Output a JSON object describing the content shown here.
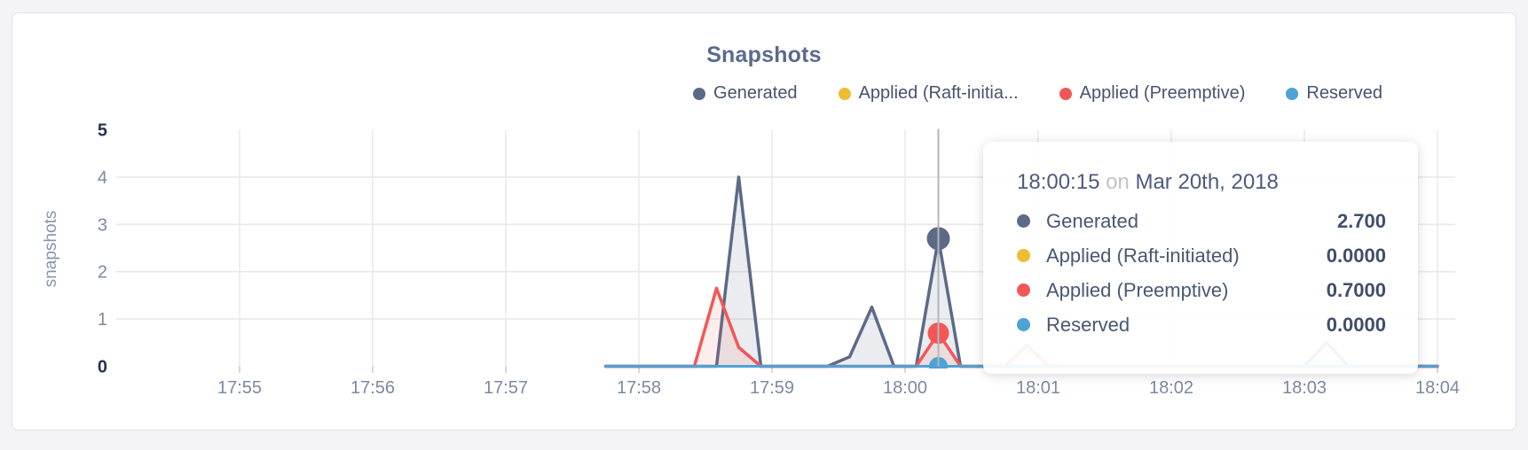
{
  "colors": {
    "page_bg": "#f4f4f6",
    "card_bg": "#ffffff",
    "card_border": "#e3e3e6",
    "title": "#5a6b8e",
    "legend_text": "#47536e",
    "tick_text": "#7d89a1",
    "tick_text_bold": "#253552",
    "axis_label": "#8695ad",
    "grid": "#e9e9ec",
    "tick_mark": "#d5d8dd",
    "crosshair": "#b3b6ba",
    "tooltip_text": "#475872",
    "tooltip_value": "#3f4e6b",
    "tooltip_on": "#c3c3c3"
  },
  "chart_data": {
    "type": "area",
    "title": "Snapshots",
    "ylabel": "snapshots",
    "xlabel": "",
    "ylim": [
      0,
      5
    ],
    "y_ticks": [
      0,
      1,
      2,
      3,
      4,
      5
    ],
    "grid": true,
    "legend_position": "top-right",
    "x_unit": "seconds after 17:54:00 on Mar 20th, 2018",
    "x_ticks": [
      {
        "label": "17:55",
        "t": 60
      },
      {
        "label": "17:56",
        "t": 120
      },
      {
        "label": "17:57",
        "t": 180
      },
      {
        "label": "17:58",
        "t": 240
      },
      {
        "label": "17:59",
        "t": 300
      },
      {
        "label": "18:00",
        "t": 360
      },
      {
        "label": "18:01",
        "t": 420
      },
      {
        "label": "18:02",
        "t": 480
      },
      {
        "label": "18:03",
        "t": 540
      },
      {
        "label": "18:04",
        "t": 600
      }
    ],
    "series": [
      {
        "name": "Generated",
        "legend_label": "Generated",
        "color": "#5c6a87",
        "fill": "rgba(92,106,135,0.13)",
        "line_width": 3.5,
        "marker_radius": 13,
        "points": [
          [
            225,
            0
          ],
          [
            275,
            0
          ],
          [
            285,
            4.0
          ],
          [
            295,
            0
          ],
          [
            325,
            0
          ],
          [
            335,
            0.2
          ],
          [
            345,
            1.25
          ],
          [
            355,
            0
          ],
          [
            365,
            0
          ],
          [
            375,
            2.7
          ],
          [
            385,
            0
          ],
          [
            540,
            0
          ],
          [
            550,
            0.5
          ],
          [
            560,
            0
          ],
          [
            600,
            0
          ]
        ]
      },
      {
        "name": "Applied (Raft-initiated)",
        "legend_label": "Applied (Raft-initia...",
        "color": "#eebd33",
        "fill": "rgba(238,189,51,0.10)",
        "line_width": 3,
        "marker_radius": 10.5,
        "points": [
          [
            225,
            0
          ],
          [
            600,
            0
          ]
        ]
      },
      {
        "name": "Applied (Preemptive)",
        "legend_label": "Applied (Preemptive)",
        "color": "#f25757",
        "fill": "rgba(242,87,87,0.11)",
        "line_width": 3.5,
        "marker_radius": 12,
        "points": [
          [
            225,
            0
          ],
          [
            265,
            0
          ],
          [
            275,
            1.65
          ],
          [
            285,
            0.4
          ],
          [
            295,
            0
          ],
          [
            365,
            0
          ],
          [
            375,
            0.7
          ],
          [
            385,
            0
          ],
          [
            405,
            0
          ],
          [
            415,
            0.45
          ],
          [
            425,
            0
          ],
          [
            600,
            0
          ]
        ]
      },
      {
        "name": "Reserved",
        "legend_label": "Reserved",
        "color": "#4da2d6",
        "fill": "none",
        "line_width": 3,
        "marker_radius": 10.5,
        "points": [
          [
            225,
            0
          ],
          [
            600,
            0
          ]
        ]
      }
    ],
    "hover": {
      "t": 375,
      "time_label": "18:00:15",
      "marker_values": [
        2.7,
        0,
        0.7,
        0
      ]
    }
  },
  "tooltip": {
    "time": "18:00:15",
    "connector": "on",
    "date": "Mar 20th, 2018",
    "rows": [
      {
        "label": "Generated",
        "value": "2.700"
      },
      {
        "label": "Applied (Raft-initiated)",
        "value": "0.0000"
      },
      {
        "label": "Applied (Preemptive)",
        "value": "0.7000"
      },
      {
        "label": "Reserved",
        "value": "0.0000"
      }
    ]
  }
}
